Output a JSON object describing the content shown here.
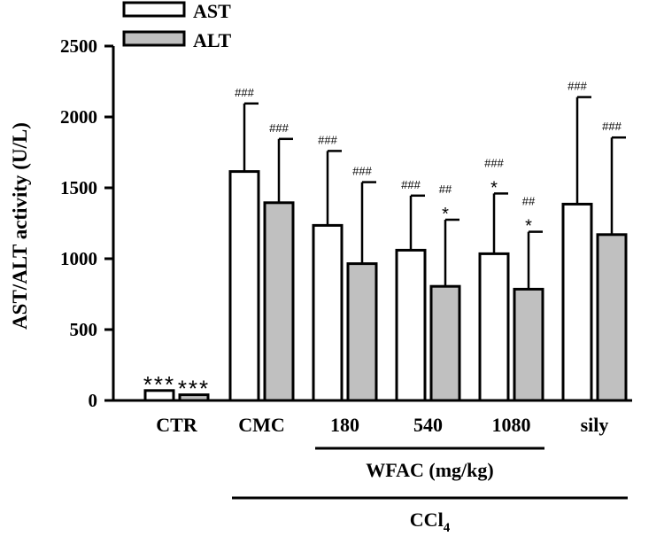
{
  "chart_data": {
    "type": "bar",
    "ylabel": "AST/ALT activity (U/L)",
    "ylim": [
      0,
      2500
    ],
    "yticks": [
      0,
      500,
      1000,
      1500,
      2000,
      2500
    ],
    "categories": [
      "CTR",
      "CMC",
      "180",
      "540",
      "1080",
      "sily"
    ],
    "series": [
      {
        "name": "AST",
        "color": "#ffffff",
        "values": [
          70,
          1615,
          1235,
          1060,
          1035,
          1385
        ],
        "errors": [
          0,
          480,
          525,
          385,
          425,
          755
        ],
        "annotations": [
          [
            "***"
          ],
          [
            "###"
          ],
          [
            "###"
          ],
          [
            "###"
          ],
          [
            "###",
            "*"
          ],
          [
            "###"
          ]
        ]
      },
      {
        "name": "ALT",
        "color": "#c0c0c0",
        "values": [
          40,
          1395,
          965,
          805,
          785,
          1170
        ],
        "errors": [
          0,
          450,
          575,
          470,
          405,
          685
        ],
        "annotations": [
          [
            "***"
          ],
          [
            "###"
          ],
          [
            "###"
          ],
          [
            "##",
            "*"
          ],
          [
            "##",
            "*"
          ],
          [
            "###"
          ]
        ]
      }
    ],
    "group_brackets": [
      {
        "label": "WFAC (mg/kg)",
        "from_category": "180",
        "to_category": "1080"
      },
      {
        "label": "CCl",
        "subscript": "4",
        "from_category": "CMC",
        "to_category": "sily"
      }
    ]
  }
}
